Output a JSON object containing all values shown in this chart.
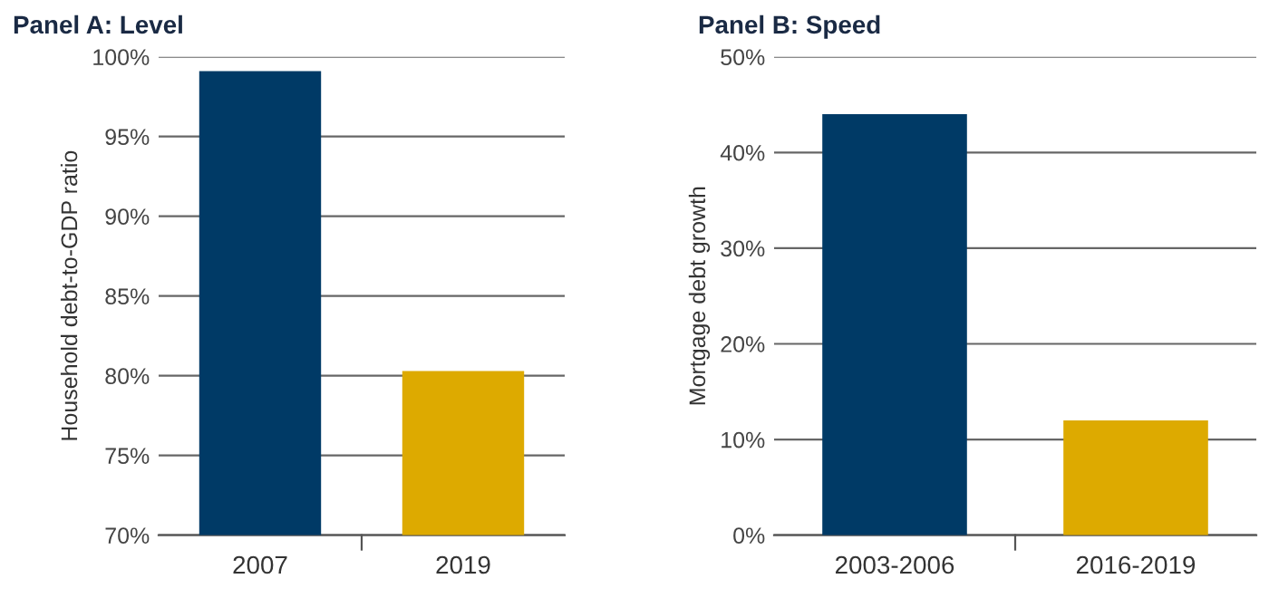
{
  "chart_data": [
    {
      "type": "bar",
      "title": "Panel A: Level",
      "ylabel": "Household debt-to-GDP ratio",
      "categories": [
        "2007",
        "2019"
      ],
      "values": [
        99.1,
        80.3
      ],
      "colors": [
        "#003a66",
        "#ddaa00"
      ],
      "ylim": [
        70,
        100
      ],
      "yticks": [
        {
          "value": 70,
          "label": "70%"
        },
        {
          "value": 75,
          "label": "75%"
        },
        {
          "value": 80,
          "label": "80%"
        },
        {
          "value": 85,
          "label": "85%"
        },
        {
          "value": 90,
          "label": "90%"
        },
        {
          "value": 95,
          "label": "95%"
        },
        {
          "value": 100,
          "label": "100%"
        }
      ],
      "grid": "y"
    },
    {
      "type": "bar",
      "title": "Panel B: Speed",
      "ylabel": "Mortgage debt growth",
      "categories": [
        "2003-2006",
        "2016-2019"
      ],
      "values": [
        44,
        12
      ],
      "colors": [
        "#003a66",
        "#ddaa00"
      ],
      "ylim": [
        0,
        50
      ],
      "yticks": [
        {
          "value": 0,
          "label": "0%"
        },
        {
          "value": 10,
          "label": "10%"
        },
        {
          "value": 20,
          "label": "20%"
        },
        {
          "value": 30,
          "label": "30%"
        },
        {
          "value": 40,
          "label": "40%"
        },
        {
          "value": 50,
          "label": "50%"
        }
      ],
      "grid": "y"
    }
  ]
}
